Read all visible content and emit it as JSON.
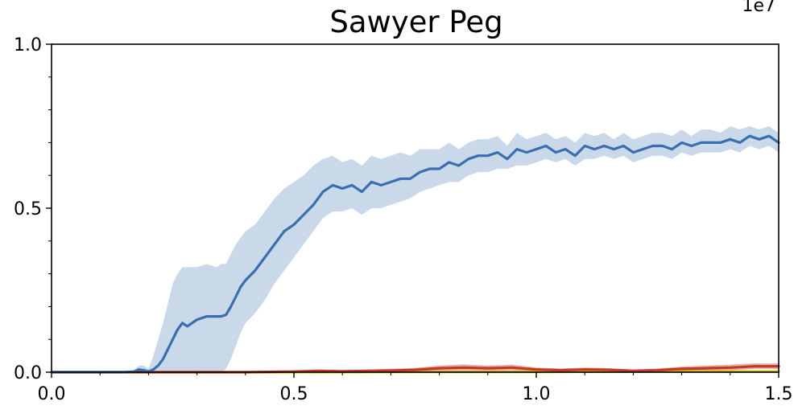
{
  "chart_data": {
    "type": "line",
    "title": "Sawyer Peg",
    "xlabel": "",
    "ylabel": "",
    "x_offset_label": "1e7",
    "xlim": [
      0.0,
      1.5
    ],
    "ylim": [
      0.0,
      1.0
    ],
    "x_ticks": [
      "0.0",
      "0.5",
      "1.0",
      "1.5"
    ],
    "y_ticks": [
      "0.0",
      "0.5",
      "1.0"
    ],
    "grid": false,
    "series": [
      {
        "color": "#3a6eb0",
        "band_color": "#c3d5e8",
        "x": [
          0.0,
          0.1,
          0.15,
          0.17,
          0.18,
          0.19,
          0.2,
          0.21,
          0.22,
          0.23,
          0.24,
          0.25,
          0.26,
          0.27,
          0.28,
          0.3,
          0.32,
          0.34,
          0.35,
          0.36,
          0.37,
          0.38,
          0.39,
          0.4,
          0.42,
          0.44,
          0.46,
          0.48,
          0.5,
          0.52,
          0.54,
          0.56,
          0.58,
          0.6,
          0.62,
          0.64,
          0.66,
          0.68,
          0.7,
          0.72,
          0.74,
          0.76,
          0.78,
          0.8,
          0.82,
          0.84,
          0.86,
          0.88,
          0.9,
          0.92,
          0.94,
          0.96,
          0.98,
          1.0,
          1.02,
          1.04,
          1.06,
          1.08,
          1.1,
          1.12,
          1.14,
          1.16,
          1.18,
          1.2,
          1.22,
          1.24,
          1.26,
          1.28,
          1.3,
          1.32,
          1.34,
          1.36,
          1.38,
          1.4,
          1.42,
          1.44,
          1.46,
          1.48,
          1.5
        ],
        "mean": [
          0.0,
          0.0,
          0.0,
          0.002,
          0.008,
          0.006,
          0.002,
          0.008,
          0.02,
          0.04,
          0.07,
          0.1,
          0.13,
          0.15,
          0.14,
          0.16,
          0.17,
          0.17,
          0.17,
          0.175,
          0.2,
          0.23,
          0.26,
          0.28,
          0.31,
          0.35,
          0.39,
          0.43,
          0.45,
          0.48,
          0.51,
          0.55,
          0.57,
          0.56,
          0.57,
          0.55,
          0.58,
          0.57,
          0.58,
          0.59,
          0.59,
          0.61,
          0.62,
          0.62,
          0.64,
          0.63,
          0.65,
          0.66,
          0.66,
          0.67,
          0.65,
          0.68,
          0.67,
          0.68,
          0.69,
          0.67,
          0.68,
          0.66,
          0.69,
          0.68,
          0.69,
          0.68,
          0.69,
          0.67,
          0.68,
          0.69,
          0.69,
          0.68,
          0.7,
          0.69,
          0.7,
          0.7,
          0.7,
          0.71,
          0.7,
          0.72,
          0.71,
          0.72,
          0.7
        ],
        "lower": [
          0.0,
          0.0,
          0.0,
          0.0,
          0.0,
          0.0,
          0.0,
          0.0,
          0.0,
          0.0,
          0.0,
          0.0,
          0.0,
          0.0,
          0.0,
          0.0,
          0.0,
          0.0,
          0.0,
          0.01,
          0.04,
          0.08,
          0.12,
          0.15,
          0.18,
          0.22,
          0.27,
          0.31,
          0.35,
          0.39,
          0.43,
          0.47,
          0.49,
          0.49,
          0.5,
          0.48,
          0.5,
          0.5,
          0.51,
          0.52,
          0.53,
          0.55,
          0.56,
          0.57,
          0.58,
          0.58,
          0.6,
          0.61,
          0.61,
          0.62,
          0.62,
          0.63,
          0.63,
          0.64,
          0.65,
          0.64,
          0.65,
          0.63,
          0.65,
          0.65,
          0.66,
          0.65,
          0.66,
          0.64,
          0.65,
          0.66,
          0.66,
          0.65,
          0.67,
          0.66,
          0.67,
          0.67,
          0.67,
          0.68,
          0.67,
          0.69,
          0.68,
          0.69,
          0.67
        ],
        "upper": [
          0.0,
          0.0,
          0.0,
          0.005,
          0.02,
          0.02,
          0.01,
          0.05,
          0.1,
          0.15,
          0.21,
          0.27,
          0.3,
          0.32,
          0.32,
          0.32,
          0.33,
          0.32,
          0.33,
          0.33,
          0.36,
          0.39,
          0.41,
          0.43,
          0.45,
          0.49,
          0.53,
          0.56,
          0.58,
          0.6,
          0.63,
          0.65,
          0.66,
          0.64,
          0.65,
          0.63,
          0.66,
          0.65,
          0.66,
          0.67,
          0.66,
          0.68,
          0.68,
          0.68,
          0.7,
          0.68,
          0.7,
          0.71,
          0.71,
          0.72,
          0.69,
          0.73,
          0.71,
          0.72,
          0.73,
          0.71,
          0.72,
          0.7,
          0.73,
          0.72,
          0.73,
          0.71,
          0.73,
          0.71,
          0.72,
          0.73,
          0.73,
          0.72,
          0.74,
          0.72,
          0.74,
          0.74,
          0.73,
          0.75,
          0.74,
          0.75,
          0.74,
          0.75,
          0.73
        ]
      },
      {
        "color": "#c0392b",
        "band_color": "#e8a59c",
        "x": [
          0.0,
          0.2,
          0.4,
          0.5,
          0.55,
          0.6,
          0.7,
          0.75,
          0.8,
          0.85,
          0.9,
          0.95,
          1.0,
          1.05,
          1.1,
          1.15,
          1.2,
          1.25,
          1.3,
          1.35,
          1.4,
          1.45,
          1.5
        ],
        "mean": [
          0.0,
          0.0,
          0.0,
          0.002,
          0.004,
          0.003,
          0.005,
          0.007,
          0.012,
          0.014,
          0.012,
          0.014,
          0.008,
          0.006,
          0.008,
          0.007,
          0.004,
          0.006,
          0.01,
          0.012,
          0.014,
          0.018,
          0.018
        ],
        "lower": [
          0.0,
          0.0,
          0.0,
          0.0,
          0.0,
          0.0,
          0.001,
          0.002,
          0.005,
          0.006,
          0.005,
          0.006,
          0.003,
          0.002,
          0.003,
          0.003,
          0.001,
          0.002,
          0.004,
          0.005,
          0.006,
          0.01,
          0.01
        ],
        "upper": [
          0.0,
          0.0,
          0.001,
          0.004,
          0.008,
          0.006,
          0.01,
          0.013,
          0.02,
          0.024,
          0.02,
          0.023,
          0.014,
          0.011,
          0.014,
          0.012,
          0.008,
          0.011,
          0.017,
          0.02,
          0.023,
          0.027,
          0.026
        ]
      },
      {
        "color": "#d4c000",
        "band_color": "#f2e98a",
        "x": [
          0.0,
          0.5,
          0.8,
          1.0,
          1.2,
          1.5
        ],
        "mean": [
          0.0,
          0.0,
          0.001,
          0.001,
          0.002,
          0.002
        ],
        "lower": [
          0.0,
          0.0,
          0.0,
          0.0,
          0.0,
          0.0
        ],
        "upper": [
          0.0,
          0.001,
          0.002,
          0.003,
          0.004,
          0.004
        ]
      }
    ]
  }
}
